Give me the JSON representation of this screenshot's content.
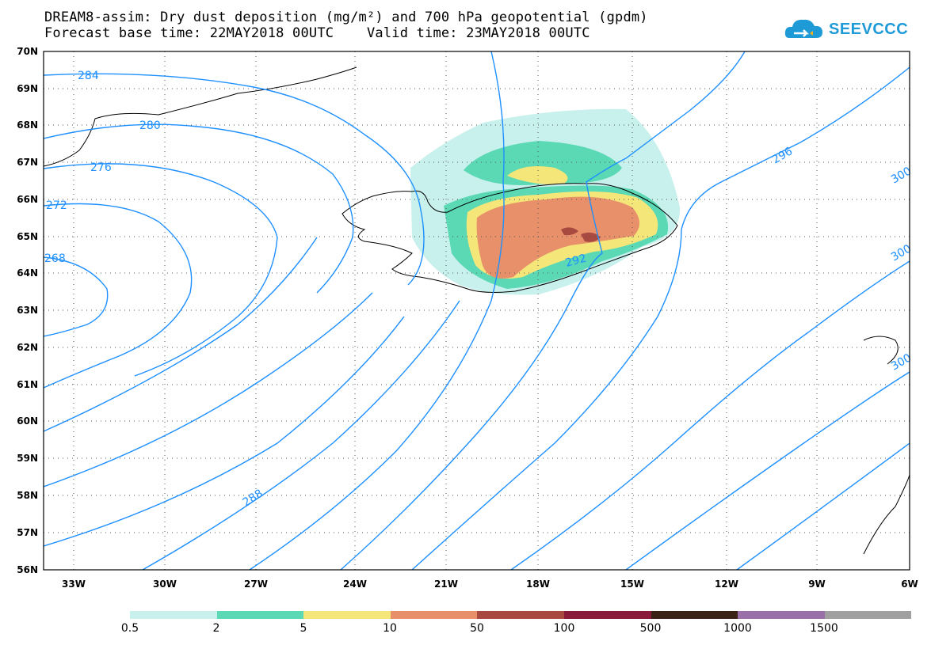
{
  "header": {
    "title": "DREAM8-assim: Dry dust deposition (mg/m²) and 700 hPa geopotential (gpdm)",
    "subtitle": "Forecast base time: 22MAY2018 00UTC    Valid time: 23MAY2018 00UTC"
  },
  "logo": {
    "text": "SEEVCCC",
    "icon": "cloud-arrow-icon",
    "color": "#1e9bd7"
  },
  "map": {
    "lat_labels": [
      "70N",
      "69N",
      "68N",
      "67N",
      "66N",
      "65N",
      "64N",
      "63N",
      "62N",
      "61N",
      "60N",
      "59N",
      "58N",
      "57N",
      "56N"
    ],
    "lon_labels": [
      "33W",
      "30W",
      "27W",
      "24W",
      "21W",
      "18W",
      "15W",
      "12W",
      "9W",
      "6W"
    ],
    "contour_labels": [
      "284",
      "280",
      "276",
      "272",
      "268",
      "288",
      "292",
      "296",
      "300",
      "300",
      "300"
    ],
    "contour_color": "#1e90ff",
    "coast_color": "#000000"
  },
  "legend": {
    "labels": [
      "0.5",
      "2",
      "5",
      "10",
      "50",
      "100",
      "500",
      "1000",
      "1500"
    ],
    "colors": [
      "#c8f0ec",
      "#5ad9b4",
      "#f5e67a",
      "#e8906a",
      "#a84a40",
      "#8a1a3a",
      "#3a2214",
      "#9a70a8",
      "#a0a0a0"
    ]
  }
}
